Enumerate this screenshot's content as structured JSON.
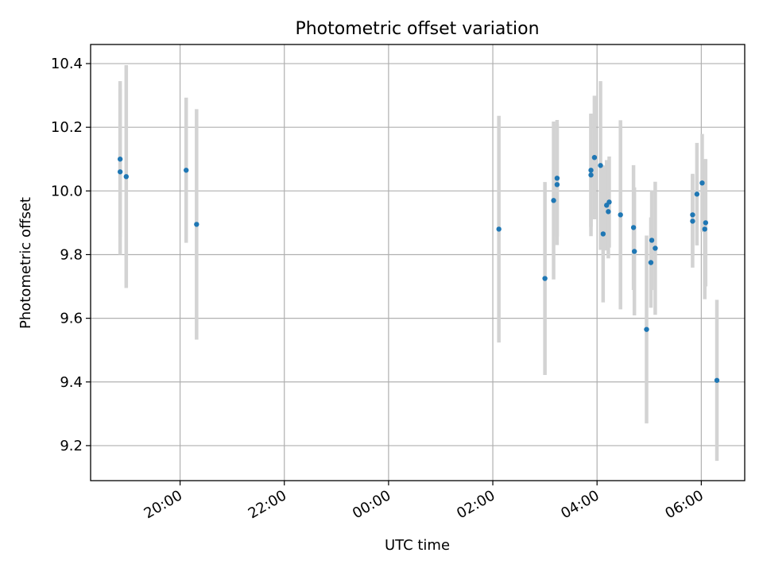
{
  "chart_data": {
    "type": "scatter",
    "title": "Photometric offset variation",
    "xlabel": "UTC time",
    "ylabel": "Photometric offset",
    "x_tick_labels": [
      "20:00",
      "22:00",
      "00:00",
      "02:00",
      "04:00",
      "06:00"
    ],
    "y_tick_labels": [
      "9.2",
      "9.4",
      "9.6",
      "9.8",
      "10.0",
      "10.2",
      "10.4"
    ],
    "x_axis": {
      "start_time": "18:17",
      "end_time": "06:50",
      "tick_times": [
        "20:00",
        "22:00",
        "00:00",
        "02:00",
        "04:00",
        "06:00"
      ]
    },
    "ylim": [
      9.09,
      10.46
    ],
    "y_ticks": [
      9.2,
      9.4,
      9.6,
      9.8,
      10.0,
      10.2,
      10.4
    ],
    "grid": true,
    "colors": {
      "point": "#1f77b4",
      "errorbar": "#d3d3d3",
      "grid": "#b0b0b0"
    },
    "points": [
      {
        "time": "18:51",
        "y": 10.1,
        "yerr": 0.245
      },
      {
        "time": "18:51",
        "y": 10.06,
        "yerr": 0.26
      },
      {
        "time": "18:58",
        "y": 10.045,
        "yerr": 0.35
      },
      {
        "time": "20:07",
        "y": 10.065,
        "yerr": 0.228
      },
      {
        "time": "20:19",
        "y": 9.895,
        "yerr": 0.362
      },
      {
        "time": "02:07",
        "y": 9.88,
        "yerr": 0.356
      },
      {
        "time": "03:00",
        "y": 9.725,
        "yerr": 0.303
      },
      {
        "time": "03:10",
        "y": 9.97,
        "yerr": 0.248
      },
      {
        "time": "03:14",
        "y": 10.02,
        "yerr": 0.19
      },
      {
        "time": "03:14",
        "y": 10.04,
        "yerr": 0.183
      },
      {
        "time": "03:53",
        "y": 10.05,
        "yerr": 0.192
      },
      {
        "time": "03:53",
        "y": 10.065,
        "yerr": 0.178
      },
      {
        "time": "03:57",
        "y": 10.105,
        "yerr": 0.194
      },
      {
        "time": "04:04",
        "y": 10.08,
        "yerr": 0.265
      },
      {
        "time": "04:07",
        "y": 9.865,
        "yerr": 0.215
      },
      {
        "time": "04:11",
        "y": 9.955,
        "yerr": 0.142
      },
      {
        "time": "04:13",
        "y": 9.935,
        "yerr": 0.147
      },
      {
        "time": "04:14",
        "y": 9.965,
        "yerr": 0.143
      },
      {
        "time": "04:27",
        "y": 9.925,
        "yerr": 0.297
      },
      {
        "time": "04:42",
        "y": 9.885,
        "yerr": 0.196
      },
      {
        "time": "04:43",
        "y": 9.81,
        "yerr": 0.201
      },
      {
        "time": "04:57",
        "y": 9.565,
        "yerr": 0.295
      },
      {
        "time": "05:02",
        "y": 9.775,
        "yerr": 0.142
      },
      {
        "time": "05:03",
        "y": 9.845,
        "yerr": 0.156
      },
      {
        "time": "05:07",
        "y": 9.82,
        "yerr": 0.209
      },
      {
        "time": "05:50",
        "y": 9.925,
        "yerr": 0.129
      },
      {
        "time": "05:50",
        "y": 9.905,
        "yerr": 0.146
      },
      {
        "time": "05:55",
        "y": 9.99,
        "yerr": 0.161
      },
      {
        "time": "06:01",
        "y": 10.025,
        "yerr": 0.154
      },
      {
        "time": "06:04",
        "y": 9.88,
        "yerr": 0.22
      },
      {
        "time": "06:05",
        "y": 9.9,
        "yerr": 0.2
      },
      {
        "time": "06:18",
        "y": 9.405,
        "yerr": 0.253
      }
    ]
  }
}
